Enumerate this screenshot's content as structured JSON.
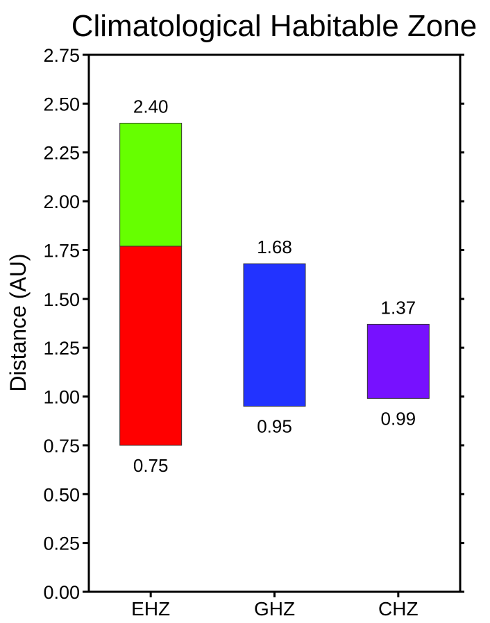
{
  "chart_data": {
    "type": "bar",
    "title": "Climatological Habitable Zone",
    "xlabel": "",
    "ylabel": "Distance (AU)",
    "ylim": [
      0,
      2.75
    ],
    "yticks": [
      "0.00",
      "0.25",
      "0.50",
      "0.75",
      "1.00",
      "1.25",
      "1.50",
      "1.75",
      "2.00",
      "2.25",
      "2.50",
      "2.75"
    ],
    "grid": false,
    "categories": [
      "EHZ",
      "GHZ",
      "CHZ"
    ],
    "bars": [
      {
        "category": "EHZ",
        "low": 0.75,
        "high": 2.4,
        "low_label": "0.75",
        "high_label": "2.40",
        "segments": [
          {
            "from": 0.75,
            "to": 1.77,
            "color": "#ff0000"
          },
          {
            "from": 1.77,
            "to": 2.4,
            "color": "#66ff00"
          }
        ]
      },
      {
        "category": "GHZ",
        "low": 0.95,
        "high": 1.68,
        "low_label": "0.95",
        "high_label": "1.68",
        "segments": [
          {
            "from": 0.95,
            "to": 1.68,
            "color": "#2233ff"
          }
        ]
      },
      {
        "category": "CHZ",
        "low": 0.99,
        "high": 1.37,
        "low_label": "0.99",
        "high_label": "1.37",
        "segments": [
          {
            "from": 0.99,
            "to": 1.37,
            "color": "#7711ff"
          }
        ]
      }
    ]
  }
}
